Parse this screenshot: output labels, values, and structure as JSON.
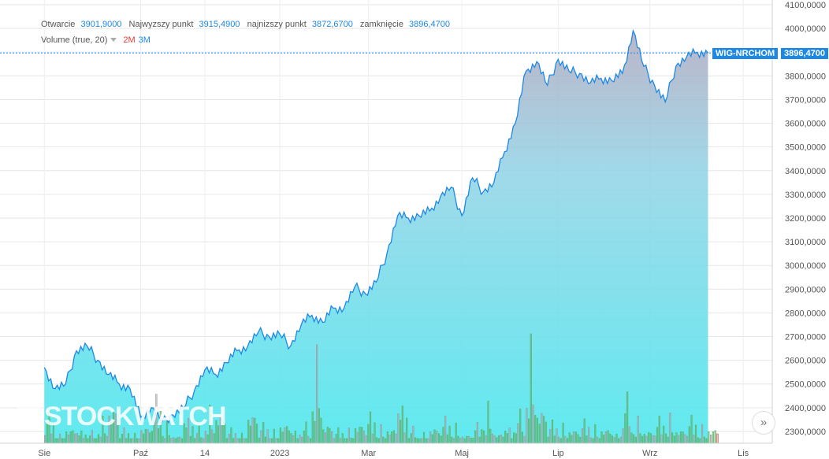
{
  "legend": {
    "open_label": "Otwarcie",
    "open_value": "3901,9000",
    "high_label": "Najwyzszy punkt",
    "high_value": "3915,4900",
    "low_label": "najnizszy punkt",
    "low_value": "3872,6700",
    "close_label": "zamknięcie",
    "close_value": "3896,4700",
    "volume_label": "Volume (true, 20)",
    "volume_value_1": "2M",
    "volume_value_2": "3M"
  },
  "series_tag": "WIG-NRCHOM",
  "last_value_tag": "3896,4700",
  "watermark": "STOCKWATCH",
  "scroll_button": "»",
  "colors": {
    "line": "#1e88e5",
    "up_volume": "#4caf50",
    "down_volume": "#e53935",
    "tag": "#1e88e5"
  },
  "chart_data": {
    "type": "area",
    "series": [
      {
        "name": "WIG-NRCHOM",
        "x": [
          "2022-08-01",
          "2022-08-08",
          "2022-08-15",
          "2022-08-22",
          "2022-08-29",
          "2022-09-05",
          "2022-09-12",
          "2022-09-19",
          "2022-09-26",
          "2022-10-03",
          "2022-10-10",
          "2022-10-17",
          "2022-10-24",
          "2022-10-31",
          "2022-11-07",
          "2022-11-14",
          "2022-11-21",
          "2022-11-28",
          "2022-12-05",
          "2022-12-12",
          "2022-12-19",
          "2022-12-26",
          "2023-01-02",
          "2023-01-09",
          "2023-01-16",
          "2023-01-23",
          "2023-01-30",
          "2023-02-06",
          "2023-02-13",
          "2023-02-20",
          "2023-02-27",
          "2023-03-06",
          "2023-03-13",
          "2023-03-20",
          "2023-03-27",
          "2023-04-03",
          "2023-04-10",
          "2023-04-17",
          "2023-04-24",
          "2023-05-01",
          "2023-05-08",
          "2023-05-15",
          "2023-05-22",
          "2023-05-29",
          "2023-06-05",
          "2023-06-12",
          "2023-06-19",
          "2023-06-26",
          "2023-07-03",
          "2023-07-10",
          "2023-07-17",
          "2023-07-24",
          "2023-07-31",
          "2023-08-07",
          "2023-08-14",
          "2023-08-21",
          "2023-08-28",
          "2023-09-04",
          "2023-09-11",
          "2023-09-18",
          "2023-09-25",
          "2023-10-02",
          "2023-10-09"
        ],
        "values": [
          2570,
          2480,
          2500,
          2640,
          2660,
          2600,
          2540,
          2500,
          2480,
          2360,
          2400,
          2340,
          2370,
          2400,
          2470,
          2560,
          2540,
          2590,
          2640,
          2660,
          2720,
          2700,
          2710,
          2660,
          2750,
          2790,
          2760,
          2820,
          2820,
          2910,
          2880,
          2930,
          3050,
          3210,
          3200,
          3210,
          3230,
          3290,
          3330,
          3210,
          3370,
          3310,
          3350,
          3480,
          3600,
          3820,
          3860,
          3760,
          3870,
          3820,
          3810,
          3770,
          3790,
          3780,
          3810,
          3990,
          3840,
          3760,
          3690,
          3840,
          3880,
          3900,
          3896
        ],
        "color": "#1e88e5"
      }
    ],
    "volume": {
      "up": [
        0.45,
        0.1,
        0.3,
        0.2,
        0.15,
        0.25,
        0.6,
        0.2,
        0.1,
        0.3,
        0.7,
        0.25,
        0.15,
        0.4,
        0.2,
        0.35,
        0.5,
        0.2,
        0.1,
        0.55,
        0.3,
        0.15,
        0.4,
        0.2,
        0.25,
        0.9,
        0.3,
        0.2,
        0.15,
        0.35,
        0.45,
        0.2,
        0.3,
        0.6,
        0.2,
        0.1,
        0.25,
        0.35,
        0.2,
        0.15,
        0.3,
        0.45,
        0.2,
        0.25,
        0.4,
        1.0,
        0.55,
        0.3,
        0.2,
        0.25,
        0.35,
        0.2,
        0.3,
        0.15,
        0.6,
        0.25,
        0.2,
        0.35,
        0.3,
        0.25,
        0.4,
        0.2,
        0.3
      ],
      "down_last": true
    },
    "yaxis_ticks": [
      "4100,0000",
      "4000,0000",
      "3900,0000",
      "3800,0000",
      "3700,0000",
      "3600,0000",
      "3500,0000",
      "3400,0000",
      "3300,0000",
      "3200,0000",
      "3100,0000",
      "3000,0000",
      "2900,0000",
      "2800,0000",
      "2700,0000",
      "2600,0000",
      "2500,0000",
      "2400,0000",
      "2300,0000"
    ],
    "yaxis_values": [
      4100,
      4000,
      3900,
      3800,
      3700,
      3600,
      3500,
      3400,
      3300,
      3200,
      3100,
      3000,
      2900,
      2800,
      2700,
      2600,
      2500,
      2400,
      2300
    ],
    "xaxis_ticks": [
      {
        "label": "Sie",
        "date": "2022-08-01"
      },
      {
        "label": "Paź",
        "date": "2022-10-03"
      },
      {
        "label": "14",
        "date": "2022-11-14"
      },
      {
        "label": "2023",
        "date": "2023-01-02"
      },
      {
        "label": "Mar",
        "date": "2023-03-01"
      },
      {
        "label": "Maj",
        "date": "2023-05-01"
      },
      {
        "label": "Lip",
        "date": "2023-07-03"
      },
      {
        "label": "Wrz",
        "date": "2023-09-01"
      },
      {
        "label": "Lis",
        "date": "2023-11-01"
      }
    ],
    "ylim": [
      2250,
      4120
    ],
    "xlim": [
      "2022-07-03",
      "2023-11-20"
    ],
    "grid": true,
    "last_value": 3896.47
  }
}
